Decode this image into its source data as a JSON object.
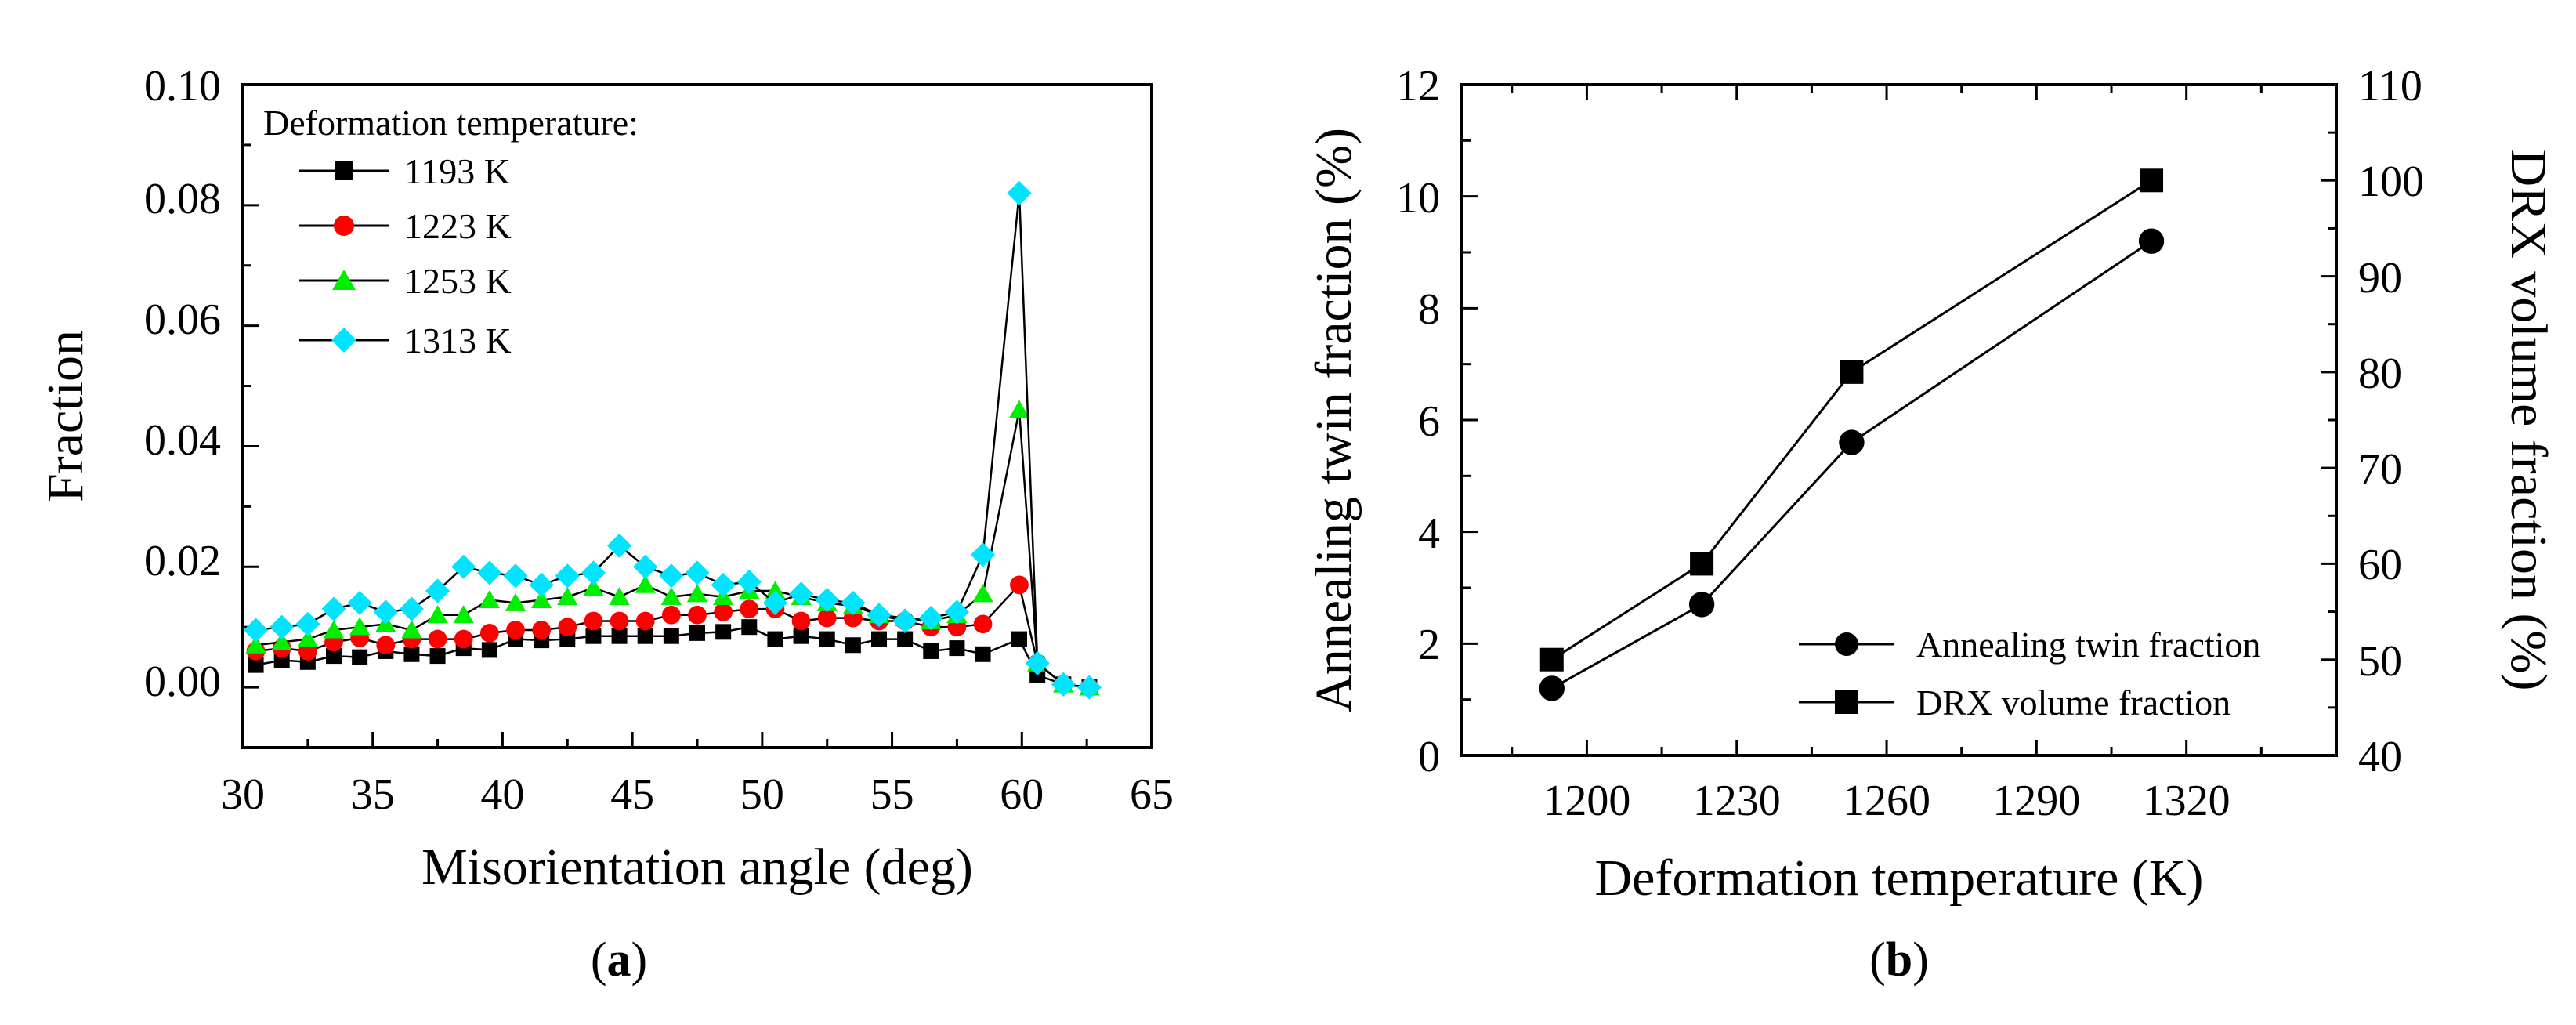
{
  "chart_data": [
    {
      "type": "scatter",
      "panel_label": "a",
      "xlabel": "Misorientation angle (deg)",
      "ylabel": "Fraction",
      "xlim": [
        30,
        65
      ],
      "ylim": [
        -0.01,
        0.1
      ],
      "xticks": [
        "30",
        "35",
        "40",
        "45",
        "50",
        "55",
        "60",
        "65"
      ],
      "yticks": [
        "0.00",
        "0.02",
        "0.04",
        "0.06",
        "0.08",
        "0.10"
      ],
      "legend_title": "Deformation temperature:",
      "legend_position": "top-left",
      "x": [
        30.5,
        31.5,
        32.5,
        33.5,
        34.5,
        35.5,
        36.5,
        37.5,
        38.5,
        39.5,
        40.5,
        41.5,
        42.5,
        43.5,
        44.5,
        45.5,
        46.5,
        47.5,
        48.5,
        49.5,
        50.5,
        51.5,
        52.5,
        53.5,
        54.5,
        55.5,
        56.5,
        57.5,
        58.5,
        59.9,
        60.6,
        61.6,
        62.6
      ],
      "series": [
        {
          "name": "1193 K",
          "marker": "square",
          "color": "#000000",
          "values": [
            0.0037,
            0.0045,
            0.0042,
            0.0052,
            0.005,
            0.006,
            0.0055,
            0.0052,
            0.0065,
            0.0062,
            0.008,
            0.0078,
            0.008,
            0.0085,
            0.0085,
            0.0085,
            0.0085,
            0.009,
            0.0092,
            0.01,
            0.008,
            0.0085,
            0.008,
            0.007,
            0.008,
            0.008,
            0.006,
            0.0065,
            0.0055,
            0.008,
            0.002,
            0.0005,
            0.0
          ]
        },
        {
          "name": "1223 K",
          "marker": "circle",
          "color": "#ff0000",
          "values": [
            0.006,
            0.0065,
            0.006,
            0.0075,
            0.0082,
            0.007,
            0.008,
            0.008,
            0.008,
            0.009,
            0.0095,
            0.0095,
            0.01,
            0.011,
            0.011,
            0.011,
            0.012,
            0.012,
            0.0125,
            0.013,
            0.013,
            0.011,
            0.0115,
            0.0115,
            0.011,
            0.011,
            0.01,
            0.01,
            0.0105,
            0.017,
            0.004,
            0.0005,
            0.0
          ]
        },
        {
          "name": "1253 K",
          "marker": "triangle",
          "color": "#00ee00",
          "values": [
            0.007,
            0.0075,
            0.008,
            0.0095,
            0.01,
            0.0105,
            0.0095,
            0.012,
            0.012,
            0.0145,
            0.014,
            0.0145,
            0.015,
            0.0165,
            0.015,
            0.017,
            0.015,
            0.0155,
            0.015,
            0.016,
            0.016,
            0.015,
            0.014,
            0.0135,
            0.012,
            0.0115,
            0.011,
            0.012,
            0.0155,
            0.046,
            0.004,
            0.0005,
            0.0
          ]
        },
        {
          "name": "1313 K",
          "marker": "diamond",
          "color": "#00e5ff",
          "values": [
            0.0095,
            0.01,
            0.0105,
            0.013,
            0.014,
            0.0125,
            0.013,
            0.016,
            0.02,
            0.019,
            0.0185,
            0.017,
            0.0185,
            0.019,
            0.0235,
            0.02,
            0.0185,
            0.019,
            0.017,
            0.0175,
            0.014,
            0.0155,
            0.0145,
            0.014,
            0.012,
            0.011,
            0.0115,
            0.0125,
            0.022,
            0.082,
            0.004,
            0.0005,
            0.0
          ]
        }
      ]
    },
    {
      "type": "line",
      "panel_label": "b",
      "xlabel": "Deformation temperature (K)",
      "ylabel": "Annealing twin fraction (%)",
      "y2label": "DRX volume fraction (%)",
      "xlim": [
        1175,
        1350
      ],
      "ylim": [
        0,
        12
      ],
      "y2lim": [
        40,
        110
      ],
      "xticks": [
        "1200",
        "1230",
        "1260",
        "1290",
        "1320"
      ],
      "yticks": [
        "0",
        "2",
        "4",
        "6",
        "8",
        "10",
        "12"
      ],
      "y2ticks": [
        "40",
        "50",
        "60",
        "70",
        "80",
        "90",
        "100",
        "110"
      ],
      "legend_position": "bottom-right",
      "x": [
        1193,
        1223,
        1253,
        1313
      ],
      "series": [
        {
          "name": "Annealing twin fraction",
          "marker": "circle",
          "axis": "left",
          "color": "#000000",
          "values": [
            1.2,
            2.7,
            5.6,
            9.2
          ]
        },
        {
          "name": "DRX volume fraction",
          "marker": "square",
          "axis": "right",
          "color": "#000000",
          "values": [
            50,
            60,
            80,
            100
          ]
        }
      ]
    }
  ]
}
